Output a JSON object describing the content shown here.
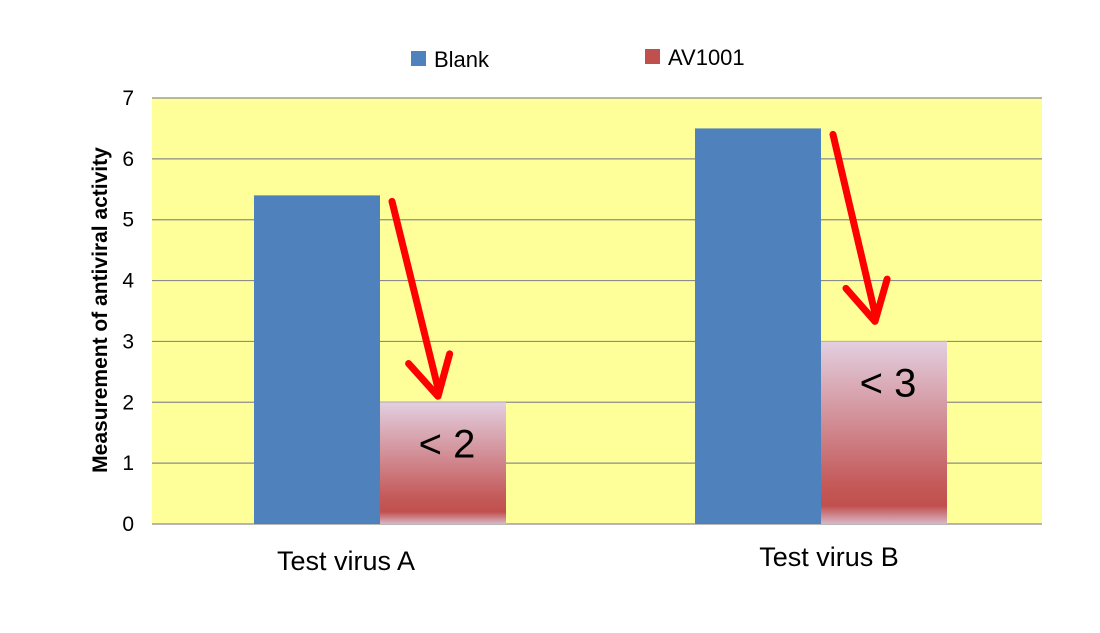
{
  "chart_data": {
    "type": "bar",
    "title": "",
    "xlabel": "",
    "ylabel": "Measurement of antiviral activity",
    "ylim": [
      0,
      7
    ],
    "yticks": [
      0,
      1,
      2,
      3,
      4,
      5,
      6,
      7
    ],
    "grid": true,
    "legend_position": "top-center",
    "categories": [
      "Test virus A",
      "Test virus B"
    ],
    "series": [
      {
        "name": "Blank",
        "values": [
          5.4,
          6.5
        ],
        "color": "#4F81BD"
      },
      {
        "name": "AV1001",
        "values": [
          2,
          3
        ],
        "color": "#C0504D"
      }
    ],
    "data_labels": {
      "AV1001": [
        "< 2",
        "< 3"
      ]
    },
    "annotations": [
      "red arrows from Blank bar tops down to AV1001 bars"
    ],
    "plot_background": "#FFFF99",
    "arrow_color": "#FF0000"
  }
}
